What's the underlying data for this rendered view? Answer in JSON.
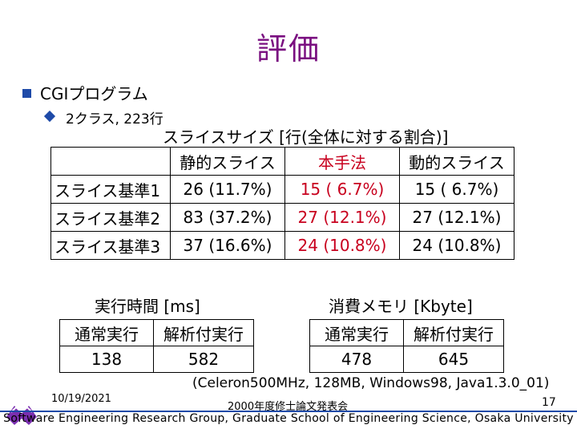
{
  "title": "評価",
  "bullet1": "CGIプログラム",
  "bullet2": "2クラス, 223行",
  "slice_table": {
    "caption": "スライスサイズ [行(全体に対する割合)]",
    "headers": [
      "",
      "静的スライス",
      "本手法",
      "動的スライス"
    ],
    "rows": [
      [
        "スライス基準1",
        "26 (11.7%)",
        "15 ( 6.7%)",
        "15 ( 6.7%)"
      ],
      [
        "スライス基準2",
        "83 (37.2%)",
        "27 (12.1%)",
        "27 (12.1%)"
      ],
      [
        "スライス基準3",
        "37 (16.6%)",
        "24 (10.8%)",
        "24 (10.8%)"
      ]
    ]
  },
  "time_table": {
    "caption": "実行時間 [ms]",
    "headers": [
      "通常実行",
      "解析付実行"
    ],
    "values": [
      "138",
      "582"
    ]
  },
  "memory_table": {
    "caption": "消費メモリ [Kbyte]",
    "headers": [
      "通常実行",
      "解析付実行"
    ],
    "values": [
      "478",
      "645"
    ]
  },
  "environment": "(Celeron500MHz, 128MB, Windows98, Java1.3.0_01)",
  "date": "10/19/2021",
  "conference": "2000年度修士論文発表会",
  "page_number": "17",
  "footer": "Software Engineering Research Group, Graduate School of Engineering Science, Osaka University",
  "colors": {
    "title": "#7a0f80",
    "accent": "#1e4aa8",
    "highlight": "#c8001e"
  }
}
